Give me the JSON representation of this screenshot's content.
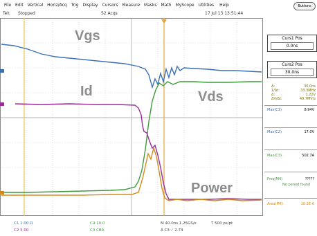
{
  "menu": [
    "File",
    "Edit",
    "Vertical",
    "Horiz/Acq",
    "Trig",
    "Display",
    "Cursors",
    "Measure",
    "Masks",
    "Math",
    "MyScope",
    "Utilities",
    "Help"
  ],
  "default_button": "Buttons",
  "status": {
    "left": "Tek",
    "mode": "Stopped",
    "acqs": "52 Acqs",
    "datetime": "17 Jul 13 13:51:44"
  },
  "traces": {
    "vgs": {
      "label": "Vgs",
      "color": "#3a6fb5"
    },
    "vds": {
      "label": "Vds",
      "color": "#3f9a3a"
    },
    "id": {
      "label": "Id",
      "color": "#9a2a9a"
    },
    "power": {
      "label": "Power",
      "color": "#d48a1a"
    }
  },
  "cursors": {
    "c1": {
      "label": "Curs1 Pos",
      "value": "0.0ns"
    },
    "c2": {
      "label": "Curs2 Pos",
      "value": "30.0ns"
    }
  },
  "deltas": [
    {
      "k": "Δ:",
      "v": "30.0ns"
    },
    {
      "k": "1/Δt:",
      "v": "33.3MHz"
    },
    {
      "k": "Δ:",
      "v": "1.22V"
    },
    {
      "k": "ΔV/Δt:",
      "v": "40.7MV/s"
    }
  ],
  "measurements": [
    {
      "key": "Max(C1)",
      "value": "8.94V",
      "color": "#3a6fb5"
    },
    {
      "key": "Max(C2)",
      "value": "17.0V",
      "color": "#3a6fb5"
    },
    {
      "key": "Max(C3)",
      "value": "502.7A",
      "color": "#3f9a3a"
    },
    {
      "key": "Freq(M4)",
      "value": "?????",
      "note": "No period found",
      "color": "#3f9a3a"
    },
    {
      "key": "Area(M4)",
      "value": "10.2E-6",
      "color": "#d48a1a"
    }
  ],
  "readouts": {
    "c1": "C1  1.00  Ω",
    "c2": "C2  5.00",
    "m1": "C4  10.0",
    "m2": "C3  CBA",
    "time": "M 40.0ns  1.25GS/s",
    "rec": "T  500 ps/pt",
    "trig": "A  C3  ⟋  2.74"
  }
}
